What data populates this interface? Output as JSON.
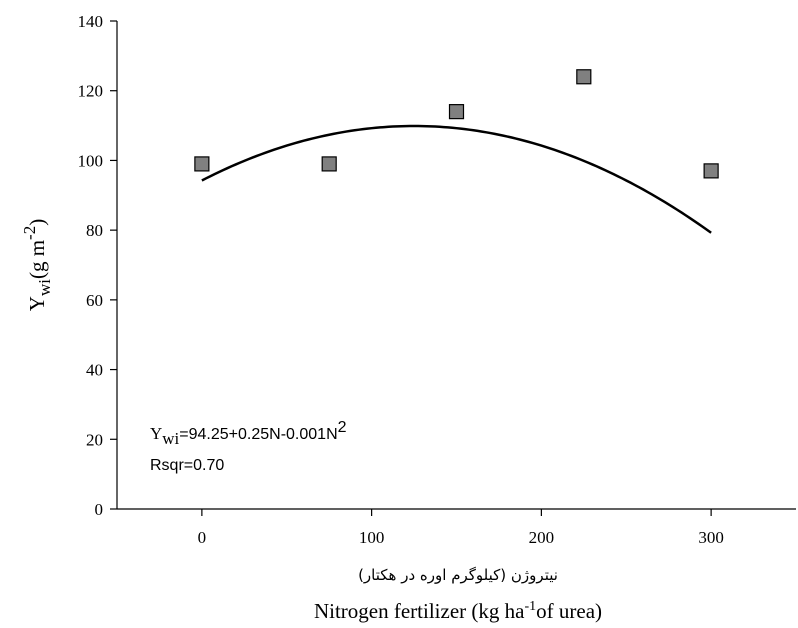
{
  "chart_data": {
    "type": "scatter",
    "x_ticks": [
      0,
      100,
      200,
      300
    ],
    "y_ticks": [
      0,
      20,
      40,
      60,
      80,
      100,
      120,
      140
    ],
    "xlim": [
      -50,
      350
    ],
    "ylim": [
      0,
      140
    ],
    "grid": false,
    "points": [
      {
        "x": 0,
        "y": 99
      },
      {
        "x": 75,
        "y": 99
      },
      {
        "x": 150,
        "y": 114
      },
      {
        "x": 225,
        "y": 124
      },
      {
        "x": 300,
        "y": 97
      }
    ],
    "fit": {
      "a": 94.25,
      "b": 0.25,
      "c": -0.001,
      "x_from": 0,
      "x_to": 300
    },
    "ylabel": {
      "main": "Y",
      "sub": "wi",
      "unit": "(g m",
      "sup": "-2",
      "close": ")"
    },
    "xlabel_farsi": "نيتروژن (كيلوگرم اوره در هكتار)",
    "xlabel": {
      "pre": "Nitrogen fertilizer (kg ha",
      "sup": "-1",
      "post": "of urea)"
    },
    "equation": {
      "main": "Y",
      "sub": "wi",
      "rest": "=94.25+0.25N-0.001N",
      "sup": "2"
    },
    "rsqr": "Rsqr=0.70",
    "colors": {
      "marker_fill": "#808080",
      "marker_stroke": "#000000",
      "line": "#000000"
    }
  }
}
